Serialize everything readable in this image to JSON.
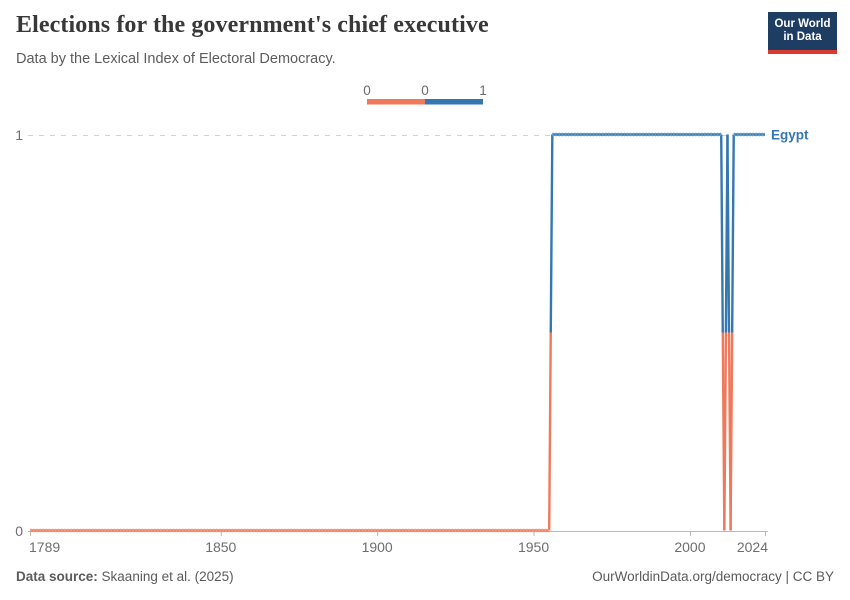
{
  "header": {
    "title": "Elections for the government's chief executive",
    "subtitle": "Data by the Lexical Index of Electoral Democracy.",
    "logo": {
      "line1": "Our World",
      "line2": "in Data",
      "bg": "#1d3d63",
      "accent": "#d93b32"
    }
  },
  "footer": {
    "source_label": "Data source:",
    "source_value": "Skaaning et al. (2025)",
    "rights": "OurWorldinData.org/democracy | CC BY"
  },
  "chart_data": {
    "type": "line",
    "entity": "Egypt",
    "entity_label_color": "#3577b1",
    "xlabel": "",
    "ylabel": "",
    "xlim": [
      1789,
      2024
    ],
    "ylim": [
      0,
      1
    ],
    "x_ticks": [
      1789,
      1850,
      1900,
      1950,
      2000,
      2024
    ],
    "y_ticks": [
      0,
      1
    ],
    "grid": "dashed gridline at y=1 only",
    "series": [
      {
        "name": "Egypt",
        "segments": [
          {
            "start": 1789,
            "end": 1955,
            "value": 0
          },
          {
            "start": 1956,
            "end": 2010,
            "value": 1
          },
          {
            "start": 2011,
            "end": 2011,
            "value": 0
          },
          {
            "start": 2012,
            "end": 2012,
            "value": 1
          },
          {
            "start": 2013,
            "end": 2013,
            "value": 0
          },
          {
            "start": 2014,
            "end": 2024,
            "value": 1
          }
        ]
      }
    ],
    "value_colors": {
      "0": "#f0795c",
      "1": "#3577b1"
    },
    "marker_colors": {
      "0": "#f49b7d",
      "1": "#5e9bc8"
    },
    "legend": {
      "edges": [
        "0",
        "0",
        "1"
      ],
      "bin_colors": [
        "#f0795c",
        "#3577b1"
      ]
    }
  }
}
